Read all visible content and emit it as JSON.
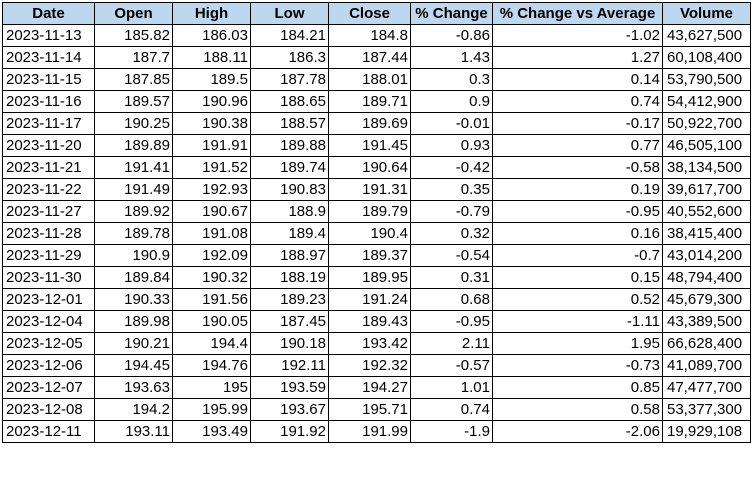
{
  "table": {
    "headers": [
      "Date",
      "Open",
      "High",
      "Low",
      "Close",
      "% Change",
      "% Change vs Average",
      "Volume"
    ],
    "rows": [
      [
        "2023-11-13",
        "185.82",
        "186.03",
        "184.21",
        "184.8",
        "-0.86",
        "-1.02",
        "43,627,500"
      ],
      [
        "2023-11-14",
        "187.7",
        "188.11",
        "186.3",
        "187.44",
        "1.43",
        "1.27",
        "60,108,400"
      ],
      [
        "2023-11-15",
        "187.85",
        "189.5",
        "187.78",
        "188.01",
        "0.3",
        "0.14",
        "53,790,500"
      ],
      [
        "2023-11-16",
        "189.57",
        "190.96",
        "188.65",
        "189.71",
        "0.9",
        "0.74",
        "54,412,900"
      ],
      [
        "2023-11-17",
        "190.25",
        "190.38",
        "188.57",
        "189.69",
        "-0.01",
        "-0.17",
        "50,922,700"
      ],
      [
        "2023-11-20",
        "189.89",
        "191.91",
        "189.88",
        "191.45",
        "0.93",
        "0.77",
        "46,505,100"
      ],
      [
        "2023-11-21",
        "191.41",
        "191.52",
        "189.74",
        "190.64",
        "-0.42",
        "-0.58",
        "38,134,500"
      ],
      [
        "2023-11-22",
        "191.49",
        "192.93",
        "190.83",
        "191.31",
        "0.35",
        "0.19",
        "39,617,700"
      ],
      [
        "2023-11-27",
        "189.92",
        "190.67",
        "188.9",
        "189.79",
        "-0.79",
        "-0.95",
        "40,552,600"
      ],
      [
        "2023-11-28",
        "189.78",
        "191.08",
        "189.4",
        "190.4",
        "0.32",
        "0.16",
        "38,415,400"
      ],
      [
        "2023-11-29",
        "190.9",
        "192.09",
        "188.97",
        "189.37",
        "-0.54",
        "-0.7",
        "43,014,200"
      ],
      [
        "2023-11-30",
        "189.84",
        "190.32",
        "188.19",
        "189.95",
        "0.31",
        "0.15",
        "48,794,400"
      ],
      [
        "2023-12-01",
        "190.33",
        "191.56",
        "189.23",
        "191.24",
        "0.68",
        "0.52",
        "45,679,300"
      ],
      [
        "2023-12-04",
        "189.98",
        "190.05",
        "187.45",
        "189.43",
        "-0.95",
        "-1.11",
        "43,389,500"
      ],
      [
        "2023-12-05",
        "190.21",
        "194.4",
        "190.18",
        "193.42",
        "2.11",
        "1.95",
        "66,628,400"
      ],
      [
        "2023-12-06",
        "194.45",
        "194.76",
        "192.11",
        "192.32",
        "-0.57",
        "-0.73",
        "41,089,700"
      ],
      [
        "2023-12-07",
        "193.63",
        "195",
        "193.59",
        "194.27",
        "1.01",
        "0.85",
        "47,477,700"
      ],
      [
        "2023-12-08",
        "194.2",
        "195.99",
        "193.67",
        "195.71",
        "0.74",
        "0.58",
        "53,377,300"
      ],
      [
        "2023-12-11",
        "193.11",
        "193.49",
        "191.92",
        "191.99",
        "-1.9",
        "-2.06",
        "19,929,108"
      ]
    ]
  },
  "colors": {
    "header_background": "#bdd7ee",
    "border": "#000000",
    "cell_background": "#ffffff"
  }
}
